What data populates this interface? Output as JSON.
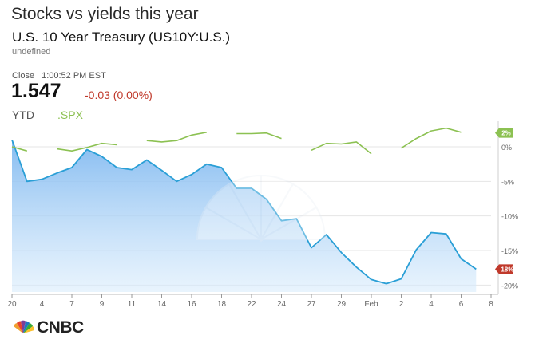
{
  "header": {
    "title": "Stocks vs yields this year",
    "subtitle": "U.S. 10 Year Treasury (US10Y:U.S.)",
    "undefined_text": "undefined",
    "close_text": "Close | 1:00:52 PM EST",
    "price": "1.547",
    "change": "-0.03 (0.00%)",
    "ytd_label": "YTD",
    "spx_label": ".SPX"
  },
  "logo": {
    "text": "CNBC"
  },
  "colors": {
    "treasury": "#2a9fd6",
    "treasury_fill": "#9fcbf5",
    "spx": "#8cc152",
    "negative": "#c0392b",
    "grid": "#e5e5e5",
    "axis_text": "#666666"
  },
  "chart_data": {
    "type": "area",
    "y_unit": "percent",
    "ylim": [
      -21,
      3
    ],
    "yticks": [
      0,
      -5,
      -10,
      -15,
      -20
    ],
    "ytick_labels": [
      "0%",
      "-5%",
      "-10%",
      "-15%",
      "-20%"
    ],
    "x_ticks": [
      {
        "index": 0,
        "label": "20"
      },
      {
        "index": 2,
        "label": "4"
      },
      {
        "index": 4,
        "label": "7"
      },
      {
        "index": 6,
        "label": "9"
      },
      {
        "index": 8,
        "label": "11"
      },
      {
        "index": 10,
        "label": "14"
      },
      {
        "index": 12,
        "label": "16"
      },
      {
        "index": 14,
        "label": "18"
      },
      {
        "index": 16,
        "label": "22"
      },
      {
        "index": 18,
        "label": "24"
      },
      {
        "index": 20,
        "label": "27"
      },
      {
        "index": 22,
        "label": "29"
      },
      {
        "index": 24,
        "label": "Feb"
      },
      {
        "index": 26,
        "label": "2"
      },
      {
        "index": 28,
        "label": "4"
      },
      {
        "index": 30,
        "label": "6"
      },
      {
        "index": 32,
        "label": "8"
      }
    ],
    "series": [
      {
        "name": "US10Y",
        "style": "area",
        "end_label": "-18%",
        "values": [
          1.0,
          -5.0,
          -4.7,
          -3.8,
          -3.0,
          -0.4,
          -1.4,
          -3.0,
          -3.3,
          -1.9,
          -3.4,
          -5.0,
          -4.0,
          -2.5,
          -3.0,
          -6.0,
          -6.0,
          -7.6,
          -10.7,
          -10.4,
          -14.6,
          -12.7,
          -15.3,
          -17.4,
          -19.2,
          -19.8,
          -19.1,
          -14.9,
          -12.4,
          -12.6,
          -16.2,
          -17.7
        ]
      },
      {
        "name": ".SPX",
        "style": "line",
        "end_label": "2%",
        "values": [
          0.0,
          -0.6,
          null,
          -0.3,
          -0.6,
          -0.1,
          0.5,
          0.3,
          null,
          0.9,
          0.7,
          0.9,
          1.7,
          2.1,
          null,
          1.9,
          1.9,
          2.0,
          1.2,
          null,
          -0.5,
          0.5,
          0.4,
          0.7,
          -1.0,
          null,
          -0.2,
          1.2,
          2.3,
          2.7,
          2.1,
          null
        ]
      }
    ]
  }
}
